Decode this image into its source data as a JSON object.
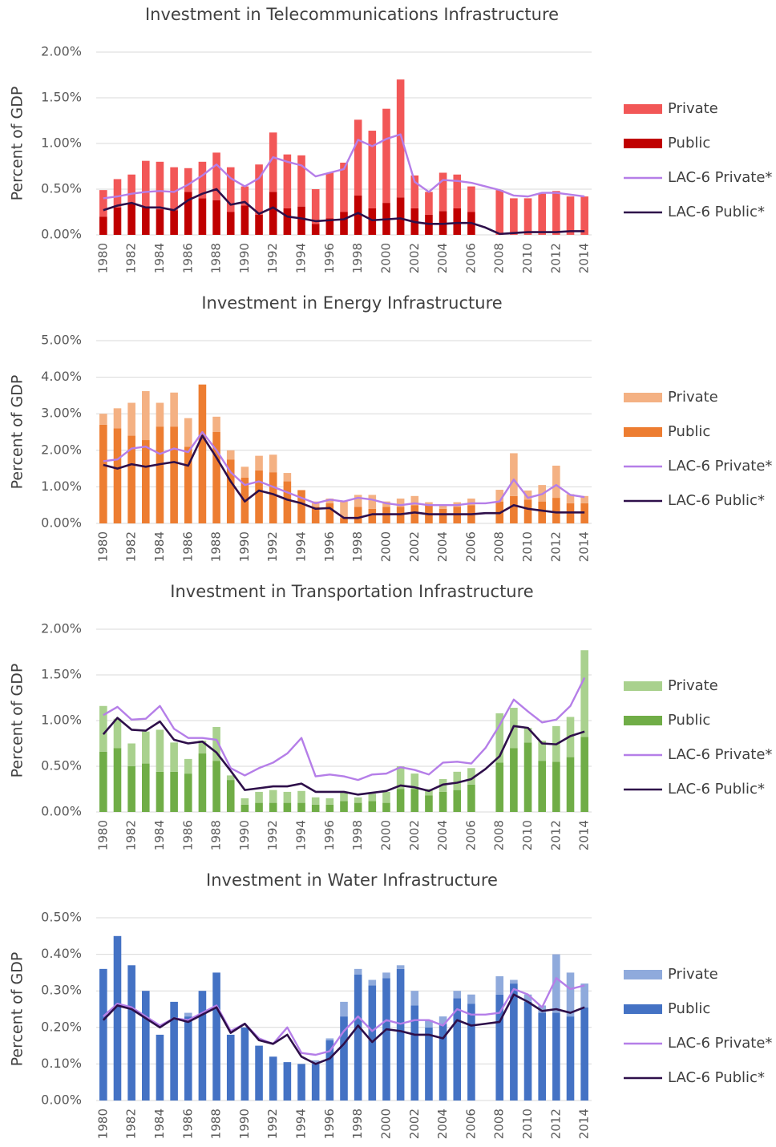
{
  "chart_data": [
    {
      "type": "bar",
      "title": "Investment in Telecommunications Infrastructure",
      "ylabel": "Percent of GDP",
      "categories": [
        "1980",
        null,
        "1982",
        null,
        "1984",
        null,
        "1986",
        null,
        "1988",
        null,
        "1990",
        null,
        "1992",
        null,
        "1994",
        null,
        "1996",
        null,
        "1998",
        null,
        "2000",
        null,
        "2002",
        null,
        "2004",
        null,
        "2006",
        null,
        "2008",
        null,
        "2010",
        null,
        "2012",
        null,
        "2014"
      ],
      "series": [
        {
          "name": "Private",
          "type": "bar",
          "color": "#f25757",
          "values": [
            0.29,
            0.31,
            0.31,
            0.51,
            0.52,
            0.47,
            0.26,
            0.4,
            0.52,
            0.49,
            0.21,
            0.55,
            0.65,
            0.59,
            0.56,
            0.38,
            0.5,
            0.54,
            0.83,
            0.85,
            1.03,
            1.29,
            0.36,
            0.25,
            0.42,
            0.37,
            0.28,
            null,
            0.49,
            0.4,
            0.4,
            0.45,
            0.48,
            0.42,
            0.42
          ]
        },
        {
          "name": "Public",
          "type": "bar",
          "color": "#c00000",
          "values": [
            0.2,
            0.3,
            0.35,
            0.3,
            0.28,
            0.27,
            0.47,
            0.4,
            0.38,
            0.25,
            0.32,
            0.22,
            0.47,
            0.29,
            0.31,
            0.12,
            0.18,
            0.25,
            0.43,
            0.29,
            0.35,
            0.41,
            0.29,
            0.22,
            0.26,
            0.29,
            0.25,
            null,
            0,
            0,
            0,
            0,
            0,
            0,
            0
          ]
        },
        {
          "name": "LAC-6 Private*",
          "type": "line",
          "color": "#b57ee8",
          "values": [
            0.4,
            0.42,
            0.45,
            0.47,
            0.48,
            0.47,
            0.55,
            0.65,
            0.77,
            0.62,
            0.53,
            0.62,
            0.85,
            0.8,
            0.76,
            0.64,
            0.68,
            0.72,
            1.04,
            0.97,
            1.05,
            1.1,
            0.58,
            0.47,
            0.6,
            0.59,
            0.57,
            0.53,
            0.49,
            0.43,
            0.42,
            0.46,
            0.46,
            0.44,
            0.42
          ]
        },
        {
          "name": "LAC-6 Public*",
          "type": "line",
          "color": "#2e0f4a",
          "values": [
            0.27,
            0.32,
            0.35,
            0.3,
            0.3,
            0.27,
            0.38,
            0.45,
            0.5,
            0.33,
            0.36,
            0.23,
            0.3,
            0.2,
            0.18,
            0.15,
            0.16,
            0.17,
            0.24,
            0.16,
            0.17,
            0.18,
            0.14,
            0.12,
            0.12,
            0.13,
            0.13,
            0.08,
            0.01,
            0.02,
            0.03,
            0.03,
            0.03,
            0.04,
            0.04
          ]
        }
      ],
      "ylim": [
        0,
        2
      ],
      "yticks": [
        {
          "value": 0,
          "label": "0.00%"
        },
        {
          "value": 0.5,
          "label": "0.50%"
        },
        {
          "value": 1,
          "label": "1.00%"
        },
        {
          "value": 1.5,
          "label": "1.50%"
        },
        {
          "value": 2,
          "label": "2.00%"
        }
      ],
      "grid": true
    },
    {
      "type": "bar",
      "title": "Investment in Energy Infrastructure",
      "ylabel": "Percent of GDP",
      "categories": [
        "1980",
        null,
        "1982",
        null,
        "1984",
        null,
        "1986",
        null,
        "1988",
        null,
        "1990",
        null,
        "1992",
        null,
        "1994",
        null,
        "1996",
        null,
        "1998",
        null,
        "2000",
        null,
        "2002",
        null,
        "2004",
        null,
        "2006",
        null,
        "2008",
        null,
        "2010",
        null,
        "2012",
        null,
        "2014"
      ],
      "series": [
        {
          "name": "Private",
          "type": "bar",
          "color": "#f4b183",
          "values": [
            0.3,
            0.55,
            0.9,
            1.34,
            0.65,
            0.93,
            0.78,
            0,
            0.42,
            0.25,
            0.3,
            0.4,
            0.48,
            0.23,
            0.02,
            0.15,
            0.13,
            0.45,
            0.33,
            0.38,
            0.15,
            0.23,
            0.25,
            0.08,
            0.1,
            0.13,
            0.18,
            null,
            0.32,
            1.17,
            0.25,
            0.45,
            0.88,
            0.25,
            0.2
          ]
        },
        {
          "name": "Public",
          "type": "bar",
          "color": "#ed7d31",
          "values": [
            2.7,
            2.6,
            2.4,
            2.28,
            2.65,
            2.65,
            2.1,
            3.8,
            2.5,
            1.75,
            1.25,
            1.45,
            1.4,
            1.15,
            0.9,
            0.45,
            0.55,
            0.15,
            0.45,
            0.4,
            0.45,
            0.45,
            0.5,
            0.5,
            0.4,
            0.45,
            0.5,
            null,
            0.6,
            0.75,
            0.65,
            0.6,
            0.7,
            0.55,
            0.55
          ]
        },
        {
          "name": "LAC-6 Private*",
          "type": "line",
          "color": "#b57ee8",
          "values": [
            1.7,
            1.75,
            2.05,
            2.1,
            1.9,
            2.05,
            1.95,
            2.5,
            2.0,
            1.4,
            1.05,
            1.15,
            1.0,
            0.85,
            0.7,
            0.55,
            0.65,
            0.6,
            0.7,
            0.65,
            0.55,
            0.5,
            0.55,
            0.5,
            0.5,
            0.5,
            0.55,
            0.55,
            0.6,
            1.2,
            0.7,
            0.8,
            1.05,
            0.78,
            0.72
          ]
        },
        {
          "name": "LAC-6 Public*",
          "type": "line",
          "color": "#2e0f4a",
          "values": [
            1.6,
            1.5,
            1.62,
            1.55,
            1.62,
            1.68,
            1.58,
            2.4,
            1.8,
            1.15,
            0.6,
            0.9,
            0.8,
            0.65,
            0.55,
            0.4,
            0.42,
            0.15,
            0.15,
            0.25,
            0.25,
            0.25,
            0.3,
            0.25,
            0.25,
            0.25,
            0.25,
            0.28,
            0.28,
            0.5,
            0.4,
            0.35,
            0.3,
            0.3,
            0.3
          ]
        }
      ],
      "ylim": [
        0,
        5
      ],
      "yticks": [
        {
          "value": 0,
          "label": "0.00%"
        },
        {
          "value": 1,
          "label": "1.00%"
        },
        {
          "value": 2,
          "label": "2.00%"
        },
        {
          "value": 3,
          "label": "3.00%"
        },
        {
          "value": 4,
          "label": "4.00%"
        },
        {
          "value": 5,
          "label": "5.00%"
        }
      ],
      "grid": true
    },
    {
      "type": "bar",
      "title": "Investment in Transportation Infrastructure",
      "ylabel": "Percent of GDP",
      "categories": [
        "1980",
        null,
        "1982",
        null,
        "1984",
        null,
        "1986",
        null,
        "1988",
        null,
        "1990",
        null,
        "1992",
        null,
        "1994",
        null,
        "1996",
        null,
        "1998",
        null,
        "2000",
        null,
        "2002",
        null,
        "2004",
        null,
        "2006",
        null,
        "2008",
        null,
        "2010",
        null,
        "2012",
        null,
        "2014"
      ],
      "series": [
        {
          "name": "Private",
          "type": "bar",
          "color": "#a9d18e",
          "values": [
            0.5,
            0.32,
            0.25,
            0.35,
            0.46,
            0.32,
            0.16,
            0.14,
            0.37,
            0.05,
            0.07,
            0.12,
            0.14,
            0.12,
            0.13,
            0.08,
            0.07,
            0.1,
            0.06,
            0.08,
            0.12,
            0.25,
            0.17,
            0.07,
            0.14,
            0.2,
            0.18,
            null,
            0.54,
            0.44,
            0.16,
            0.22,
            0.39,
            0.44,
            0.95
          ]
        },
        {
          "name": "Public",
          "type": "bar",
          "color": "#70ad47",
          "values": [
            0.66,
            0.7,
            0.5,
            0.53,
            0.44,
            0.44,
            0.42,
            0.64,
            0.56,
            0.35,
            0.08,
            0.1,
            0.1,
            0.1,
            0.1,
            0.08,
            0.08,
            0.12,
            0.1,
            0.12,
            0.1,
            0.25,
            0.25,
            0.18,
            0.22,
            0.24,
            0.3,
            null,
            0.54,
            0.7,
            0.76,
            0.56,
            0.55,
            0.6,
            0.82
          ]
        },
        {
          "name": "LAC-6 Private*",
          "type": "line",
          "color": "#b57ee8",
          "values": [
            1.06,
            1.15,
            1.01,
            1.02,
            1.16,
            0.91,
            0.81,
            0.81,
            0.79,
            0.48,
            0.4,
            0.48,
            0.54,
            0.64,
            0.81,
            0.39,
            0.41,
            0.39,
            0.35,
            0.41,
            0.42,
            0.49,
            0.46,
            0.41,
            0.54,
            0.55,
            0.53,
            0.7,
            0.95,
            1.23,
            1.1,
            0.98,
            1.01,
            1.16,
            1.47
          ]
        },
        {
          "name": "LAC-6 Public*",
          "type": "line",
          "color": "#2e0f4a",
          "values": [
            0.85,
            1.03,
            0.9,
            0.89,
            0.99,
            0.79,
            0.75,
            0.77,
            0.65,
            0.45,
            0.24,
            0.26,
            0.28,
            0.28,
            0.31,
            0.22,
            0.22,
            0.22,
            0.19,
            0.21,
            0.23,
            0.29,
            0.27,
            0.23,
            0.3,
            0.32,
            0.36,
            0.47,
            0.61,
            0.94,
            0.92,
            0.75,
            0.74,
            0.83,
            0.88
          ]
        }
      ],
      "ylim": [
        0,
        2
      ],
      "yticks": [
        {
          "value": 0,
          "label": "0.00%"
        },
        {
          "value": 0.5,
          "label": "0.50%"
        },
        {
          "value": 1,
          "label": "1.00%"
        },
        {
          "value": 1.5,
          "label": "1.50%"
        },
        {
          "value": 2,
          "label": "2.00%"
        }
      ],
      "grid": true
    },
    {
      "type": "bar",
      "title": "Investment in Water Infrastructure",
      "ylabel": "Percent of GDP",
      "categories": [
        "1980",
        null,
        "1982",
        null,
        "1984",
        null,
        "1986",
        null,
        "1988",
        null,
        "1990",
        null,
        "1992",
        null,
        "1994",
        null,
        "1996",
        null,
        "1998",
        null,
        "2000",
        null,
        "2002",
        null,
        "2004",
        null,
        "2006",
        null,
        "2008",
        null,
        "2010",
        null,
        "2012",
        null,
        "2014"
      ],
      "series": [
        {
          "name": "Private",
          "type": "bar",
          "color": "#8faadc",
          "values": [
            0,
            0,
            0,
            0,
            0,
            0,
            0.01,
            0,
            0,
            0,
            0,
            0,
            0,
            0,
            0,
            0.01,
            0.005,
            0.04,
            0.015,
            0.015,
            0.015,
            0.01,
            0.04,
            0.02,
            0.02,
            0.02,
            0.025,
            null,
            0.05,
            0.01,
            0.02,
            0.02,
            0.16,
            0.12,
            0.065
          ]
        },
        {
          "name": "Public",
          "type": "bar",
          "color": "#4472c4",
          "values": [
            0.36,
            0.45,
            0.37,
            0.3,
            0.18,
            0.27,
            0.23,
            0.3,
            0.35,
            0.18,
            0.2,
            0.15,
            0.12,
            0.105,
            0.1,
            0.1,
            0.165,
            0.23,
            0.345,
            0.315,
            0.335,
            0.36,
            0.26,
            0.2,
            0.21,
            0.28,
            0.265,
            null,
            0.29,
            0.32,
            0.27,
            0.24,
            0.24,
            0.23,
            0.255
          ]
        },
        {
          "name": "LAC-6 Private*",
          "type": "line",
          "color": "#b57ee8",
          "values": [
            0.23,
            0.265,
            0.255,
            0.23,
            0.205,
            0.225,
            0.22,
            0.24,
            0.26,
            0.19,
            0.21,
            0.17,
            0.155,
            0.2,
            0.13,
            0.125,
            0.135,
            0.19,
            0.23,
            0.19,
            0.22,
            0.21,
            0.22,
            0.22,
            0.205,
            0.25,
            0.235,
            0.235,
            0.24,
            0.305,
            0.29,
            0.255,
            0.335,
            0.305,
            0.315
          ]
        },
        {
          "name": "LAC-6 Public*",
          "type": "line",
          "color": "#2e0f4a",
          "values": [
            0.22,
            0.26,
            0.25,
            0.225,
            0.2,
            0.225,
            0.215,
            0.235,
            0.255,
            0.185,
            0.21,
            0.165,
            0.155,
            0.18,
            0.12,
            0.1,
            0.115,
            0.155,
            0.205,
            0.16,
            0.195,
            0.19,
            0.18,
            0.18,
            0.17,
            0.22,
            0.205,
            0.21,
            0.215,
            0.29,
            0.27,
            0.245,
            0.25,
            0.24,
            0.255
          ]
        }
      ],
      "ylim": [
        0,
        0.5
      ],
      "yticks": [
        {
          "value": 0,
          "label": "0.00%"
        },
        {
          "value": 0.1,
          "label": "0.10%"
        },
        {
          "value": 0.2,
          "label": "0.20%"
        },
        {
          "value": 0.3,
          "label": "0.30%"
        },
        {
          "value": 0.4,
          "label": "0.40%"
        },
        {
          "value": 0.5,
          "label": "0.50%"
        }
      ],
      "grid": true
    }
  ]
}
